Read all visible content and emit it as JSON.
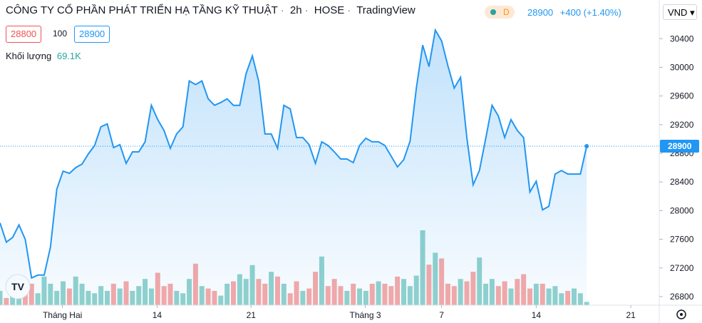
{
  "chart_data": {
    "type": "line",
    "title": "CÔNG TY CỔ PHẦN PHÁT TRIỂN HẠ TẦNG KỸ THUẬT",
    "interval": "2h",
    "exchange": "HOSE",
    "source": "TradingView",
    "badge": "D",
    "last_price": 28900,
    "change": "+400 (+1.40%)",
    "bid": 28800,
    "spread": 100,
    "ask": 28900,
    "volume_label": "Khối lượng",
    "volume_value": "69.1K",
    "currency": "VND",
    "color": "#2196f3",
    "up_color": "#26a69a",
    "down_color": "#ef5350",
    "values": [
      27830,
      27560,
      27625,
      27800,
      27600,
      27060,
      27100,
      27100,
      27490,
      28300,
      28550,
      28520,
      28600,
      28650,
      28790,
      28910,
      29170,
      29210,
      28880,
      28920,
      28660,
      28820,
      28820,
      28960,
      29470,
      29270,
      29120,
      28870,
      29070,
      29170,
      29810,
      29760,
      29810,
      29560,
      29470,
      29510,
      29560,
      29470,
      29470,
      29910,
      30160,
      29810,
      29070,
      29070,
      28870,
      29470,
      29420,
      29020,
      29020,
      28920,
      28660,
      28960,
      28910,
      28820,
      28720,
      28720,
      28670,
      28910,
      29010,
      28960,
      28960,
      28910,
      28760,
      28610,
      28710,
      28970,
      29710,
      30310,
      30010,
      30520,
      30370,
      30020,
      29710,
      29860,
      29020,
      28360,
      28560,
      29010,
      29470,
      29320,
      29020,
      29270,
      29120,
      29020,
      28260,
      28410,
      28010,
      28060,
      28510,
      28560,
      28510,
      28510,
      28510,
      28900
    ],
    "volumes": [
      300,
      150,
      200,
      350,
      300,
      450,
      250,
      600,
      450,
      300,
      500,
      350,
      600,
      450,
      300,
      250,
      400,
      300,
      450,
      350,
      500,
      300,
      400,
      550,
      350,
      680,
      400,
      450,
      300,
      250,
      550,
      870,
      400,
      350,
      300,
      200,
      450,
      500,
      650,
      550,
      840,
      550,
      450,
      700,
      600,
      450,
      250,
      500,
      300,
      350,
      700,
      1020,
      400,
      550,
      400,
      300,
      450,
      350,
      300,
      450,
      500,
      450,
      400,
      600,
      550,
      400,
      620,
      1570,
      850,
      1100,
      980,
      450,
      400,
      550,
      500,
      700,
      1000,
      450,
      550,
      400,
      500,
      350,
      550,
      650,
      350,
      450,
      450,
      350,
      400,
      250,
      300,
      350,
      250,
      69.1
    ],
    "xlim": [
      0,
      104.5
    ],
    "xticks": [
      {
        "value": 9.9,
        "label": "Tháng Hai"
      },
      {
        "value": 24.9,
        "label": "14"
      },
      {
        "value": 39.8,
        "label": "21"
      },
      {
        "value": 57.9,
        "label": "Tháng 3"
      },
      {
        "value": 70,
        "label": "7"
      },
      {
        "value": 85,
        "label": "14"
      },
      {
        "value": 100,
        "label": "21"
      }
    ],
    "ylim": [
      26680,
      30940
    ],
    "yticks": [
      26800,
      27200,
      27600,
      28000,
      28400,
      28800,
      29200,
      29600,
      30000,
      30400
    ]
  }
}
